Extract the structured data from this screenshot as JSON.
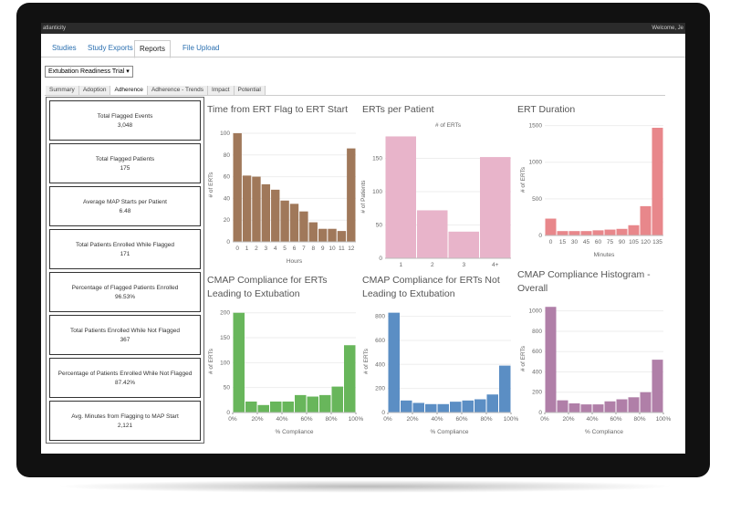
{
  "header": {
    "brand": "atlanticity",
    "welcome": "Welcome, Je"
  },
  "nav": {
    "tabs": [
      "Studies",
      "Study Exports",
      "Reports",
      "File Upload"
    ],
    "active": 2
  },
  "filter": {
    "selected": "Extubation Readiness Trial"
  },
  "subtabs": {
    "tabs": [
      "Summary",
      "Adoption",
      "Adherence",
      "Adherence - Trends",
      "Impact",
      "Potential"
    ],
    "active": 2
  },
  "kpis": [
    {
      "label": "Total Flagged Events",
      "value": "3,048"
    },
    {
      "label": "Total Flagged Patients",
      "value": "175"
    },
    {
      "label": "Average MAP Starts per Patient",
      "value": "6.48"
    },
    {
      "label": "Total Patients Enrolled While Flagged",
      "value": "171"
    },
    {
      "label": "Percentage of Flagged Patients Enrolled",
      "value": "96.53%"
    },
    {
      "label": "Total Patients Enrolled While Not Flagged",
      "value": "367"
    },
    {
      "label": "Percentage of Patients Enrolled While Not Flagged",
      "value": "87.42%"
    },
    {
      "label": "Avg. Minutes from Flagging to MAP Start",
      "value": "2,121"
    }
  ],
  "charts": [
    {
      "type": "bar",
      "title": "Time from ERT Flag to ERT Start",
      "categories": [
        "0",
        "1",
        "2",
        "3",
        "4",
        "5",
        "6",
        "7",
        "8",
        "9",
        "10",
        "11",
        "12"
      ],
      "values": [
        100,
        61,
        60,
        53,
        48,
        38,
        35,
        28,
        18,
        12,
        12,
        10,
        86
      ],
      "color": "#a0785a",
      "ylim": [
        0,
        105
      ],
      "yticks": [
        0,
        20,
        40,
        60,
        80,
        100
      ],
      "x_label": "Hours",
      "y_label": "# of ERTs"
    },
    {
      "type": "bar",
      "title": "ERTs per Patient",
      "categories": [
        "1",
        "2",
        "3",
        "4+"
      ],
      "values": [
        183,
        72,
        40,
        152
      ],
      "color": "#e8b4ca",
      "ylim": [
        0,
        185
      ],
      "yticks": [
        0,
        50,
        100,
        150
      ],
      "legend_title": "# of ERTs",
      "y_label": "# of Patients"
    },
    {
      "type": "bar",
      "title": "ERT Duration",
      "categories": [
        "0",
        "15",
        "30",
        "45",
        "60",
        "75",
        "90",
        "105",
        "120",
        "135"
      ],
      "values": [
        230,
        60,
        60,
        60,
        70,
        80,
        90,
        140,
        400,
        1470
      ],
      "color": "#e8878b",
      "ylim": [
        0,
        1520
      ],
      "yticks": [
        0,
        500,
        1000,
        1500
      ],
      "x_label": "Minutes",
      "y_label": "# of ERTs"
    },
    {
      "type": "histogram",
      "title": "CMAP Compliance for ERTs Leading to Extubation",
      "bins": [
        0,
        10,
        20,
        30,
        40,
        50,
        60,
        70,
        80,
        90,
        100
      ],
      "values": [
        200,
        22,
        15,
        22,
        22,
        35,
        32,
        35,
        52,
        135
      ],
      "color": "#68b65b",
      "xlim": [
        0,
        100
      ],
      "xticks": [
        {
          "value": 0,
          "label": "0%"
        },
        {
          "value": 20,
          "label": "20%"
        },
        {
          "value": 40,
          "label": "40%"
        },
        {
          "value": 60,
          "label": "60%"
        },
        {
          "value": 80,
          "label": "80%"
        },
        {
          "value": 100,
          "label": "100%"
        }
      ],
      "ylim": [
        0,
        205
      ],
      "yticks": [
        0,
        50,
        100,
        150,
        200
      ],
      "x_label": "% Compliance",
      "y_label": "# of ERTs"
    },
    {
      "type": "histogram",
      "title": "CMAP Compliance for ERTs Not Leading to Extubation",
      "bins": [
        0,
        10,
        20,
        30,
        40,
        50,
        60,
        70,
        80,
        90,
        100
      ],
      "values": [
        830,
        100,
        80,
        70,
        70,
        90,
        100,
        110,
        150,
        390
      ],
      "color": "#5b8ec4",
      "xlim": [
        0,
        100
      ],
      "xticks": [
        {
          "value": 0,
          "label": "0%"
        },
        {
          "value": 20,
          "label": "20%"
        },
        {
          "value": 40,
          "label": "40%"
        },
        {
          "value": 60,
          "label": "60%"
        },
        {
          "value": 80,
          "label": "80%"
        },
        {
          "value": 100,
          "label": "100%"
        }
      ],
      "ylim": [
        0,
        850
      ],
      "yticks": [
        0,
        200,
        400,
        600,
        800
      ],
      "x_label": "% Compliance",
      "y_label": "# of ERTs"
    },
    {
      "type": "histogram",
      "title": "CMAP Compliance Histogram - Overall",
      "bins": [
        0,
        10,
        20,
        30,
        40,
        50,
        60,
        70,
        80,
        90,
        100
      ],
      "values": [
        1040,
        120,
        90,
        80,
        80,
        110,
        130,
        150,
        200,
        520
      ],
      "color": "#b07fa8",
      "xlim": [
        0,
        100
      ],
      "xticks": [
        {
          "value": 0,
          "label": "0%"
        },
        {
          "value": 20,
          "label": "20%"
        },
        {
          "value": 40,
          "label": "40%"
        },
        {
          "value": 60,
          "label": "60%"
        },
        {
          "value": 80,
          "label": "80%"
        },
        {
          "value": 100,
          "label": "100%"
        }
      ],
      "ylim": [
        0,
        1060
      ],
      "yticks": [
        0,
        200,
        400,
        600,
        800,
        1000
      ],
      "x_label": "% Compliance",
      "y_label": "# of ERTs"
    }
  ]
}
